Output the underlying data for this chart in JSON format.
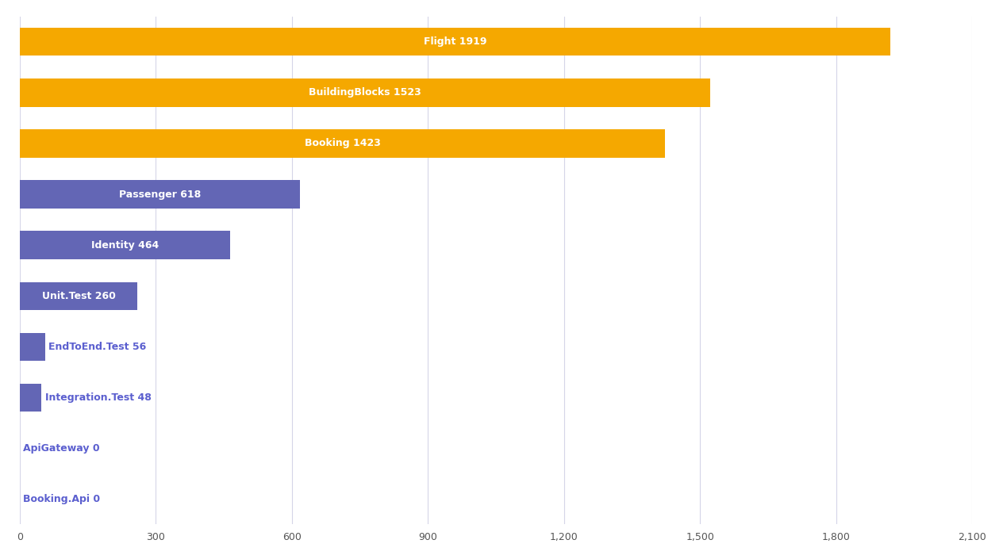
{
  "categories": [
    "Flight 1919",
    "BuildingBlocks 1523",
    "Booking 1423",
    "Passenger 618",
    "Identity 464",
    "Unit.Test 260",
    "EndToEnd.Test 56",
    "Integration.Test 48",
    "ApiGateway 0",
    "Booking.Api 0"
  ],
  "values": [
    1919,
    1523,
    1423,
    618,
    464,
    260,
    56,
    48,
    0,
    0
  ],
  "bar_colors": [
    "#f5a800",
    "#f5a800",
    "#f5a800",
    "#6366b5",
    "#6366b5",
    "#6366b5",
    "#6366b5",
    "#6366b5",
    "#6366b5",
    "#6366b5"
  ],
  "xlim": [
    0,
    2100
  ],
  "xticks": [
    0,
    300,
    600,
    900,
    1200,
    1500,
    1800,
    2100
  ],
  "background_color": "#ffffff",
  "grid_color": "#d5d5e8",
  "label_color_blue": "#5b5fcf",
  "label_color_white": "#ffffff",
  "bar_height": 0.55,
  "label_fontsize": 9,
  "tick_fontsize": 9,
  "outside_label_threshold": 150
}
